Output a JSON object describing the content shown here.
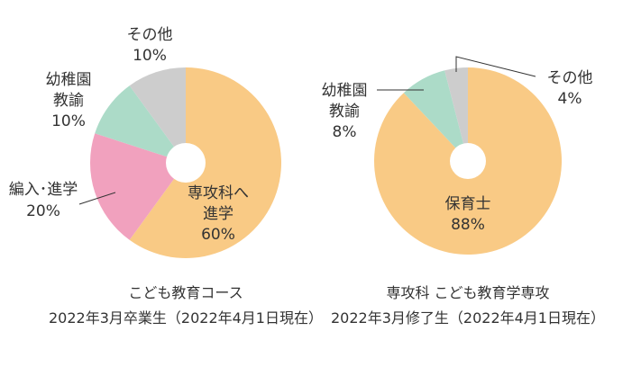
{
  "chart_data": [
    {
      "type": "pie",
      "style": "donut",
      "caption_line1": "こども教育コース",
      "caption_line2": "2022年3月卒業生（2022年4月1日現在）",
      "slices": [
        {
          "line1": "専攻科へ",
          "line2": "進学",
          "value_label": "60%",
          "value": 60,
          "color": "#f9ca85"
        },
        {
          "line1": "編入･進学",
          "line2": "",
          "value_label": "20%",
          "value": 20,
          "color": "#f1a1be"
        },
        {
          "line1": "幼稚園",
          "line2": "教諭",
          "value_label": "10%",
          "value": 10,
          "color": "#acdbc8"
        },
        {
          "line1": "その他",
          "line2": "",
          "value_label": "10%",
          "value": 10,
          "color": "#cdcdcd"
        }
      ]
    },
    {
      "type": "pie",
      "style": "donut",
      "caption_line1": "専攻科 こども教育学専攻",
      "caption_line2": "2022年3月修了生（2022年4月1日現在）",
      "slices": [
        {
          "line1": "保育士",
          "line2": "",
          "value_label": "88%",
          "value": 88,
          "color": "#f9ca85"
        },
        {
          "line1": "幼稚園",
          "line2": "教諭",
          "value_label": "8%",
          "value": 8,
          "color": "#acdbc8"
        },
        {
          "line1": "その他",
          "line2": "",
          "value_label": "4%",
          "value": 4,
          "color": "#cdcdcd"
        }
      ]
    }
  ]
}
